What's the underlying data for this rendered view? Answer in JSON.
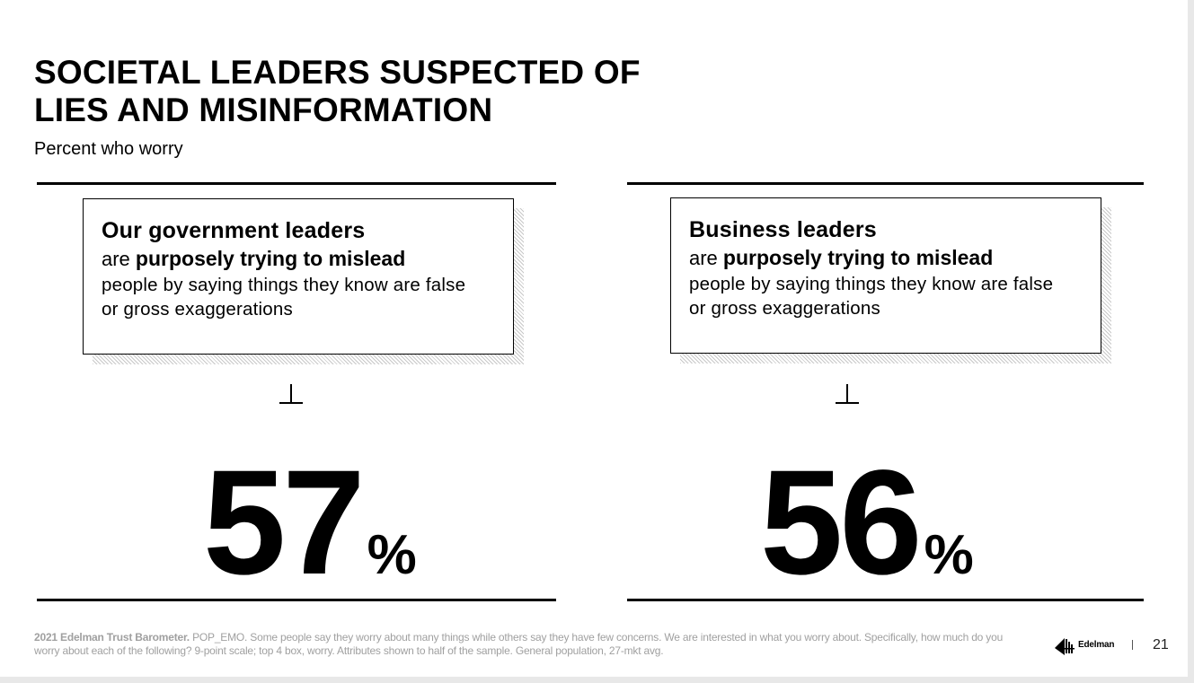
{
  "slide": {
    "title": "SOCIETAL LEADERS SUSPECTED OF\nLIES AND MISINFORMATION",
    "subtitle": "Percent who worry"
  },
  "panels": [
    {
      "heading": "Our government leaders",
      "line2_pre": "are ",
      "line2_bold": "purposely trying to mislead",
      "rest_line1": "people by saying things they know are false",
      "rest_line2": "or gross exaggerations",
      "value": "57",
      "unit": "%"
    },
    {
      "heading": "Business leaders",
      "line2_pre": "are ",
      "line2_bold": "purposely trying to mislead",
      "rest_line1": "people by saying things they know are false",
      "rest_line2": "or gross exaggerations",
      "value": "56",
      "unit": "%"
    }
  ],
  "footer": {
    "source_bold": "2021 Edelman Trust Barometer.",
    "source_text": " POP_EMO. Some people say they worry about many things while others say they have few concerns. We are interested in what you worry about. Specifically, how much do you worry about each of the following? 9-point scale; top 4 box, worry. Attributes shown to half of the sample. General population, 27-mkt avg.",
    "logo_text": "Edelman",
    "page_number": "21"
  }
}
